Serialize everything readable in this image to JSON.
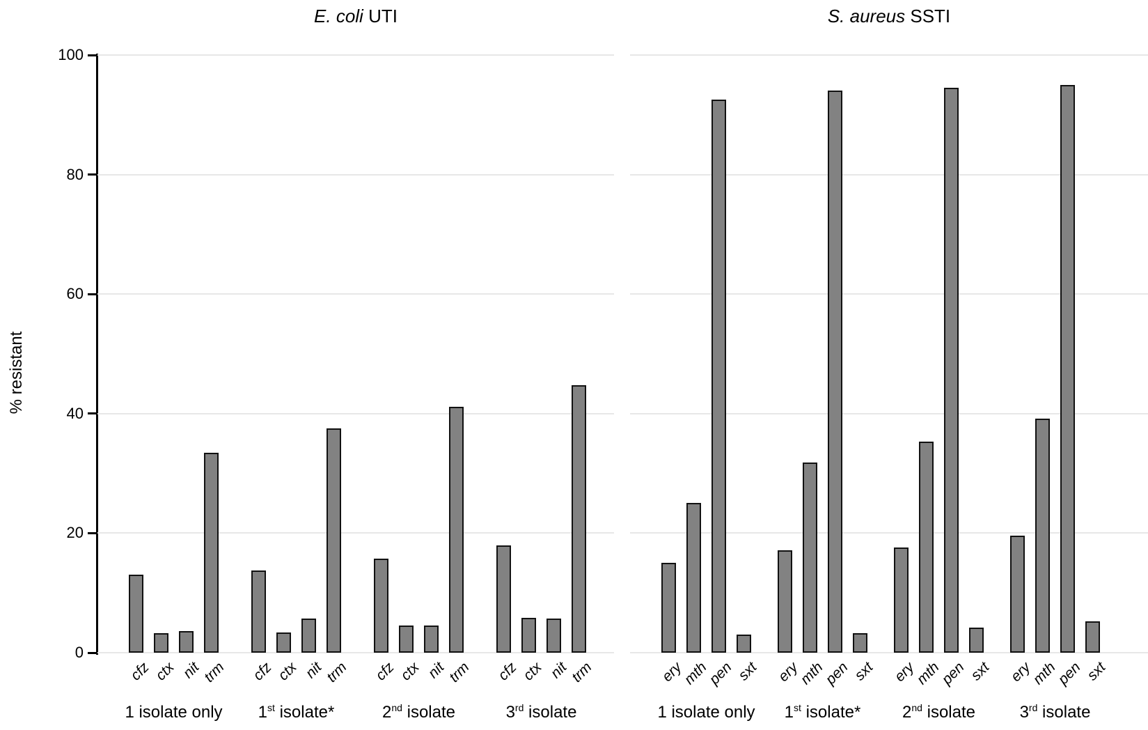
{
  "y_axis_title": "% resistant",
  "chart_data": [
    {
      "type": "bar",
      "title": "E. coli UTI",
      "title_parts": {
        "italic": "E. coli",
        "regular": " UTI"
      },
      "ylabel": "% resistant",
      "ylim": [
        0,
        100
      ],
      "yticks": [
        0,
        20,
        40,
        60,
        80,
        100
      ],
      "grid": "horizontal",
      "legend": "none",
      "bar_color": "#828282",
      "bar_border": "#111111",
      "grid_color": "#e7e7e7",
      "bar_labels": [
        "cfz",
        "ctx",
        "nit",
        "trm"
      ],
      "categories": [
        "1 isolate only",
        "1st isolate*",
        "2nd isolate",
        "3rd isolate"
      ],
      "category_parts": [
        {
          "pre": "1 isolate only",
          "sup": "",
          "post": ""
        },
        {
          "pre": "1",
          "sup": "st",
          "post": " isolate*"
        },
        {
          "pre": "2",
          "sup": "nd",
          "post": " isolate"
        },
        {
          "pre": "3",
          "sup": "rd",
          "post": " isolate"
        }
      ],
      "series": [
        {
          "name": "cfz",
          "values": [
            13.0,
            13.7,
            15.7,
            17.9
          ]
        },
        {
          "name": "ctx",
          "values": [
            3.3,
            3.4,
            4.6,
            5.8
          ]
        },
        {
          "name": "nit",
          "values": [
            3.6,
            5.7,
            4.6,
            5.7
          ]
        },
        {
          "name": "trm",
          "values": [
            33.5,
            37.5,
            41.2,
            44.7
          ]
        }
      ]
    },
    {
      "type": "bar",
      "title": "S. aureus SSTI",
      "title_parts": {
        "italic": "S. aureus",
        "regular": " SSTI"
      },
      "ylabel": "% resistant",
      "ylim": [
        0,
        100
      ],
      "yticks": [
        0,
        20,
        40,
        60,
        80,
        100
      ],
      "grid": "horizontal",
      "legend": "none",
      "bar_color": "#828282",
      "bar_border": "#111111",
      "grid_color": "#e7e7e7",
      "bar_labels": [
        "ery",
        "mth",
        "pen",
        "sxt"
      ],
      "categories": [
        "1 isolate only",
        "1st isolate*",
        "2nd isolate",
        "3rd isolate"
      ],
      "category_parts": [
        {
          "pre": "1 isolate only",
          "sup": "",
          "post": ""
        },
        {
          "pre": "1",
          "sup": "st",
          "post": " isolate*"
        },
        {
          "pre": "2",
          "sup": "nd",
          "post": " isolate"
        },
        {
          "pre": "3",
          "sup": "rd",
          "post": " isolate"
        }
      ],
      "series": [
        {
          "name": "ery",
          "values": [
            15.0,
            17.1,
            17.6,
            19.6
          ]
        },
        {
          "name": "mth",
          "values": [
            25.1,
            31.8,
            35.3,
            39.2
          ]
        },
        {
          "name": "pen",
          "values": [
            92.5,
            94.0,
            94.5,
            95.0
          ]
        },
        {
          "name": "sxt",
          "values": [
            3.0,
            3.3,
            4.2,
            5.3
          ]
        }
      ]
    }
  ]
}
